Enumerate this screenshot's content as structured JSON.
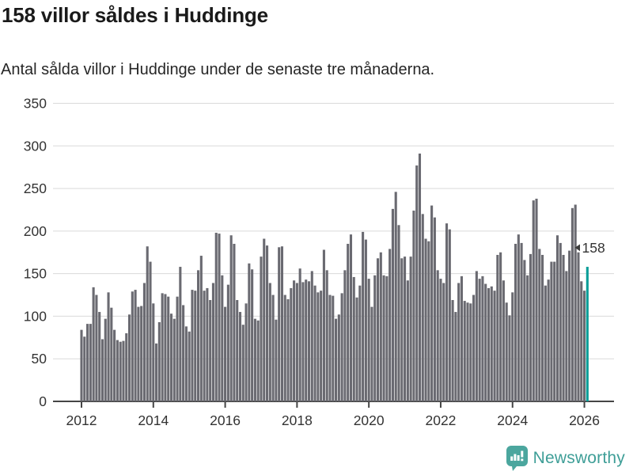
{
  "header": {
    "title": "158 villor såldes i Huddinge",
    "subtitle": "Antal sålda villor i Huddinge under de senaste tre månaderna."
  },
  "chart_data": {
    "type": "bar",
    "title": "158 villor såldes i Huddinge",
    "subtitle": "Antal sålda villor i Huddinge under de senaste tre månaderna.",
    "x_start_year": 2012,
    "x_tick_labels": [
      "2012",
      "2014",
      "2016",
      "2018",
      "2020",
      "2022",
      "2024",
      "2026"
    ],
    "y_ticks": [
      0,
      50,
      100,
      150,
      200,
      250,
      300,
      350
    ],
    "ylim": [
      0,
      350
    ],
    "grid": "horizontal",
    "bar_color": "#6a6a71",
    "series": [
      {
        "name": "Antal sålda villor, rullande tre månader",
        "values": [
          84,
          76,
          91,
          91,
          134,
          125,
          105,
          73,
          97,
          128,
          110,
          84,
          72,
          70,
          71,
          80,
          102,
          129,
          131,
          111,
          112,
          139,
          182,
          164,
          115,
          68,
          93,
          127,
          126,
          123,
          103,
          97,
          123,
          158,
          113,
          88,
          82,
          131,
          130,
          154,
          171,
          130,
          133,
          119,
          139,
          198,
          197,
          148,
          111,
          137,
          195,
          185,
          119,
          105,
          90,
          115,
          162,
          155,
          97,
          95,
          170,
          191,
          183,
          139,
          125,
          96,
          181,
          182,
          125,
          120,
          133,
          142,
          139,
          156,
          140,
          143,
          141,
          153,
          136,
          128,
          130,
          178,
          154,
          125,
          124,
          97,
          102,
          127,
          154,
          185,
          196,
          146,
          122,
          136,
          199,
          190,
          144,
          111,
          148,
          168,
          175,
          148,
          147,
          179,
          226,
          246,
          207,
          168,
          170,
          142,
          170,
          224,
          277,
          291,
          220,
          191,
          188,
          230,
          216,
          154,
          144,
          139,
          209,
          202,
          119,
          105,
          139,
          147,
          118,
          116,
          115,
          125,
          153,
          144,
          147,
          138,
          133,
          135,
          130,
          172,
          175,
          142,
          116,
          101,
          128,
          185,
          196,
          186,
          166,
          148,
          173,
          236,
          238,
          179,
          172,
          136,
          143,
          164,
          164,
          195,
          186,
          172,
          153,
          177,
          227,
          231,
          175,
          141,
          130,
          158
        ]
      }
    ],
    "highlight": {
      "index": 169,
      "value": 158,
      "label": "158",
      "color": "#0a9e98"
    }
  },
  "footer": {
    "brand": "Newsworthy",
    "brand_color": "#3e9e97",
    "logo_icon": "newsworthy-bubble-chart-icon"
  }
}
